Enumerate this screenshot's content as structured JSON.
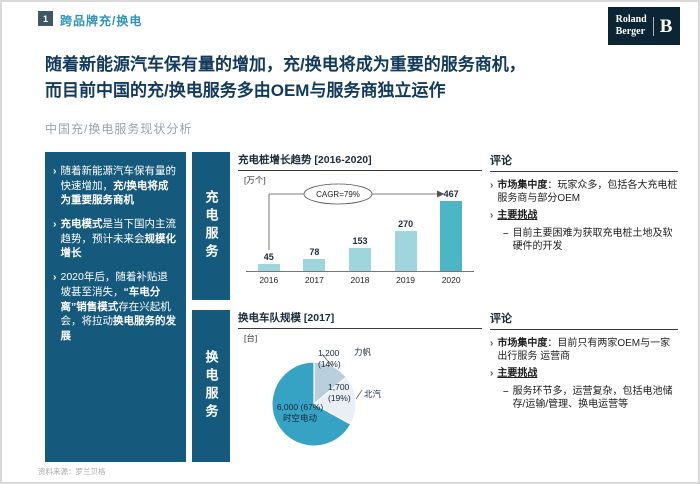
{
  "header": {
    "page_number": "1",
    "section_title": "跨品牌充/换电",
    "logo": {
      "line1": "Roland",
      "line2": "Berger",
      "mark": "B"
    }
  },
  "headline": {
    "line1": "随着新能源汽车保有量的增加，充/换电将成为重要的服务商机，",
    "line2": "而目前中国的充/换电服务多由OEM与服务商独立运作"
  },
  "subtitle": "中国充/换电服务现状分析",
  "left_panel": {
    "bullets": [
      {
        "segments": [
          {
            "text": "随着新能源汽车保有量的快速增加，",
            "bold": false
          },
          {
            "text": "充/换电将成为重要服务商机",
            "bold": true
          }
        ]
      },
      {
        "segments": [
          {
            "text": "充电模式",
            "bold": true
          },
          {
            "text": "是当下国内主流趋势，预计未来会",
            "bold": false
          },
          {
            "text": "规模化增长",
            "bold": true
          }
        ]
      },
      {
        "segments": [
          {
            "text": "2020年后，随着补贴退坡甚至消失，",
            "bold": false
          },
          {
            "text": "“车电分离”销售模式",
            "bold": true
          },
          {
            "text": "存在兴起机会，将拉动",
            "bold": false
          },
          {
            "text": "换电服务的发展",
            "bold": true
          }
        ]
      }
    ]
  },
  "row_labels": [
    "充电服务",
    "换电服务"
  ],
  "chart_data": [
    {
      "type": "bar",
      "title": "充电桩增长趋势 [2016-2020]",
      "unit": "[万个]",
      "categories": [
        "2016",
        "2017",
        "2018",
        "2019",
        "2020"
      ],
      "values": [
        45,
        78,
        153,
        270,
        467
      ],
      "annotation": "CAGR=79%",
      "bar_color": "#9fd6dd",
      "last_bar_color": "#4db6c6",
      "ylim": [
        0,
        500
      ],
      "grid": false
    },
    {
      "type": "pie",
      "title": "换电车队规模 [2017]",
      "unit": "[台]",
      "slices": [
        {
          "label": "力帆",
          "value": "1,200",
          "pct": 14,
          "pct_label": "(14%)",
          "color": "#b9cfdd"
        },
        {
          "label": "北汽",
          "value": "1,700",
          "pct": 19,
          "pct_label": "(19%)",
          "color": "#e9eff4"
        },
        {
          "label": "时空电动",
          "value": "6,000",
          "pct": 67,
          "pct_label": "(67%)",
          "color": "#36a3c4"
        }
      ]
    }
  ],
  "comments": [
    {
      "title": "评论",
      "items": [
        {
          "type": "bullet",
          "segments": [
            {
              "text": "市场集中度",
              "bold": true
            },
            {
              "text": "：玩家众多，包括各大充电桩服务商与部分OEM",
              "bold": false
            }
          ]
        },
        {
          "type": "bullet",
          "segments": [
            {
              "text": "主要挑战",
              "bold": true,
              "underline": true
            }
          ]
        },
        {
          "type": "dash",
          "segments": [
            {
              "text": "目前主要困难为获取充电桩土地及软硬件的开发",
              "bold": false
            }
          ]
        }
      ]
    },
    {
      "title": "评论",
      "items": [
        {
          "type": "bullet",
          "segments": [
            {
              "text": "市场集中度",
              "bold": true
            },
            {
              "text": "：目前只有两家OEM与一家出行服务 运营商",
              "bold": false
            }
          ]
        },
        {
          "type": "bullet",
          "segments": [
            {
              "text": "主要挑战",
              "bold": true,
              "underline": true
            }
          ]
        },
        {
          "type": "dash",
          "segments": [
            {
              "text": "服务环节多，运营复杂，包括电池储存/运输/管理、换电运营等",
              "bold": false
            }
          ]
        }
      ]
    }
  ],
  "source": "资料来源：罗兰贝格",
  "colors": {
    "panel": "#155a7d",
    "section_accent": "#2e95b5",
    "headline": "#123a5c",
    "logo_bg": "#0b2534"
  }
}
